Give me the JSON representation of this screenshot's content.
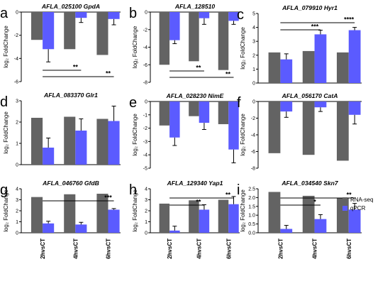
{
  "colors": {
    "rna_seq": "#636363",
    "qpcr": "#5b5bff",
    "axis": "#000000"
  },
  "legend": [
    {
      "name": "RNA-seq",
      "color": "#636363"
    },
    {
      "name": "qPCR",
      "color": "#5b5bff"
    }
  ],
  "chart_data": [
    {
      "letter": "a",
      "title": "AFLA_025100 GpdA",
      "type": "bar",
      "orientation": "down",
      "ylim": [
        -6,
        0
      ],
      "yticks": [
        "0",
        "-2",
        "-4",
        "-6"
      ],
      "ylabel": "log₂ FoldChange",
      "rna_seq": [
        -2.4,
        -3.2,
        -3.7
      ],
      "qpcr": [
        -3.2,
        -0.5,
        -0.6
      ],
      "qpcr_err": [
        1.1,
        0.4,
        0.5
      ],
      "sig": [
        {
          "from": 0,
          "to": 1,
          "label": "**"
        },
        {
          "from": 0,
          "to": 2,
          "label": "**"
        }
      ]
    },
    {
      "letter": "b",
      "title": "AFLA_128510",
      "type": "bar",
      "orientation": "down",
      "ylim": [
        -8,
        0
      ],
      "yticks": [
        "0",
        "-2",
        "-4",
        "-6",
        "-8"
      ],
      "ylabel": "log₂ FoldChange",
      "rna_seq": [
        -6.0,
        -5.6,
        -6.6
      ],
      "qpcr": [
        -3.2,
        -0.7,
        -1.0
      ],
      "qpcr_err": [
        0.4,
        0.7,
        0.4
      ],
      "sig": [
        {
          "from": 0,
          "to": 1,
          "label": "**"
        },
        {
          "from": 0,
          "to": 2,
          "label": "**"
        }
      ]
    },
    {
      "letter": "c",
      "title": "AFLA_079910 Hyr1",
      "type": "bar",
      "orientation": "up",
      "ylim": [
        0,
        5
      ],
      "yticks": [
        "0",
        "1",
        "2",
        "3",
        "4",
        "5"
      ],
      "ylabel": "log₂ FoldChange",
      "rna_seq": [
        2.2,
        2.3,
        2.2
      ],
      "qpcr": [
        1.7,
        3.5,
        3.8
      ],
      "qpcr_err": [
        0.4,
        0.3,
        0.2
      ],
      "sig": [
        {
          "from": 0,
          "to": 1,
          "label": "***"
        },
        {
          "from": 0,
          "to": 2,
          "label": "****"
        }
      ]
    },
    {
      "letter": "d",
      "title": "AFLA_083370 Glr1",
      "type": "bar",
      "orientation": "up",
      "ylim": [
        0,
        3
      ],
      "yticks": [
        "0",
        "1",
        "2",
        "3"
      ],
      "ylabel": "log₂ FoldChange",
      "rna_seq": [
        2.2,
        2.25,
        2.15
      ],
      "qpcr": [
        0.8,
        1.6,
        2.05
      ],
      "qpcr_err": [
        0.45,
        0.55,
        0.7
      ],
      "sig": []
    },
    {
      "letter": "e",
      "title": "AFLA_028230 NimE",
      "type": "bar",
      "orientation": "down",
      "ylim": [
        -5,
        0
      ],
      "yticks": [
        "0",
        "-1",
        "-2",
        "-3",
        "-4",
        "-5"
      ],
      "ylabel": "log₂ FoldChange",
      "rna_seq": [
        -1.8,
        -1.1,
        -1.7
      ],
      "qpcr": [
        -2.7,
        -1.6,
        -3.6
      ],
      "qpcr_err": [
        0.6,
        0.5,
        1.0
      ],
      "sig": []
    },
    {
      "letter": "f",
      "title": "AFLA_056170 CatA",
      "type": "bar",
      "orientation": "down",
      "ylim": [
        -8,
        0
      ],
      "yticks": [
        "0",
        "-2",
        "-4",
        "-6",
        "-8"
      ],
      "ylabel": "log₂ FoldChange",
      "rna_seq": [
        -6.2,
        -6.4,
        -7.1
      ],
      "qpcr": [
        -1.2,
        -0.7,
        -1.6
      ],
      "qpcr_err": [
        0.7,
        0.5,
        1.1
      ],
      "sig": []
    },
    {
      "letter": "g",
      "title": "AFLA_046760 GfdB",
      "type": "bar",
      "orientation": "up",
      "ylim": [
        0,
        4
      ],
      "yticks": [
        "0",
        "1",
        "2",
        "3",
        "4"
      ],
      "ylabel": "log₂ FoldChange",
      "categories": [
        "2hvsCT",
        "4hvsCT",
        "6hvsCT"
      ],
      "rna_seq": [
        3.25,
        3.5,
        3.55
      ],
      "qpcr": [
        0.85,
        0.75,
        2.1
      ],
      "qpcr_err": [
        0.2,
        0.2,
        0.1
      ],
      "sig": [
        {
          "from": 0,
          "to": 2,
          "label": "***"
        }
      ]
    },
    {
      "letter": "h",
      "title": "AFLA_129340 Yap1",
      "type": "bar",
      "orientation": "up",
      "ylim": [
        0,
        4
      ],
      "yticks": [
        "0",
        "1",
        "2",
        "3",
        "4"
      ],
      "ylabel": "log₂ FoldChange",
      "categories": [
        "2hvsCT",
        "4hvsCT",
        "6hvsCT"
      ],
      "rna_seq": [
        2.65,
        2.95,
        3.0
      ],
      "qpcr": [
        0.2,
        2.1,
        2.6
      ],
      "qpcr_err": [
        0.4,
        0.45,
        0.7
      ],
      "sig": [
        {
          "from": 0,
          "to": 1,
          "label": "**"
        },
        {
          "from": 0,
          "to": 2,
          "label": "**"
        }
      ]
    },
    {
      "letter": "i",
      "title": "AFLA_034540 Skn7",
      "type": "bar",
      "orientation": "up",
      "ylim": [
        0,
        2.5
      ],
      "yticks": [
        "0.0",
        "0.5",
        "1.0",
        "1.5",
        "2.0",
        "2.5"
      ],
      "ylabel": "log₂ FoldChange",
      "categories": [
        "2hvsCT",
        "4hvsCT",
        "6hvsCT"
      ],
      "rna_seq": [
        2.32,
        2.1,
        1.98
      ],
      "qpcr": [
        0.22,
        0.78,
        1.32
      ],
      "qpcr_err": [
        0.2,
        0.25,
        0.35
      ],
      "sig": [
        {
          "from": 0,
          "to": 1,
          "label": "*"
        },
        {
          "from": 0,
          "to": 2,
          "label": "**"
        }
      ]
    }
  ]
}
